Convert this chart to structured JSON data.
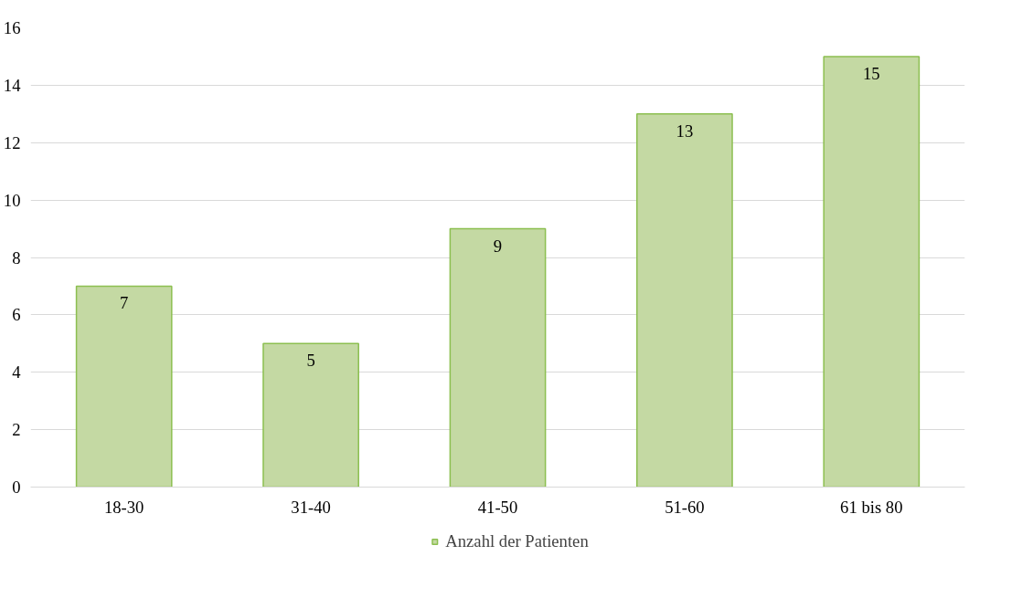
{
  "chart_data": {
    "type": "bar",
    "categories": [
      "18-30",
      "31-40",
      "41-50",
      "51-60",
      "61 bis 80"
    ],
    "series": [
      {
        "name": "Anzahl der Patienten",
        "color": "#c4d9a3",
        "values": [
          7,
          5,
          9,
          13,
          15
        ]
      }
    ],
    "ylim": [
      0,
      16
    ],
    "yticks": [
      0,
      2,
      4,
      6,
      8,
      10,
      12,
      14,
      16
    ],
    "grid": "y",
    "legend": "bottom",
    "data_labels": true
  }
}
